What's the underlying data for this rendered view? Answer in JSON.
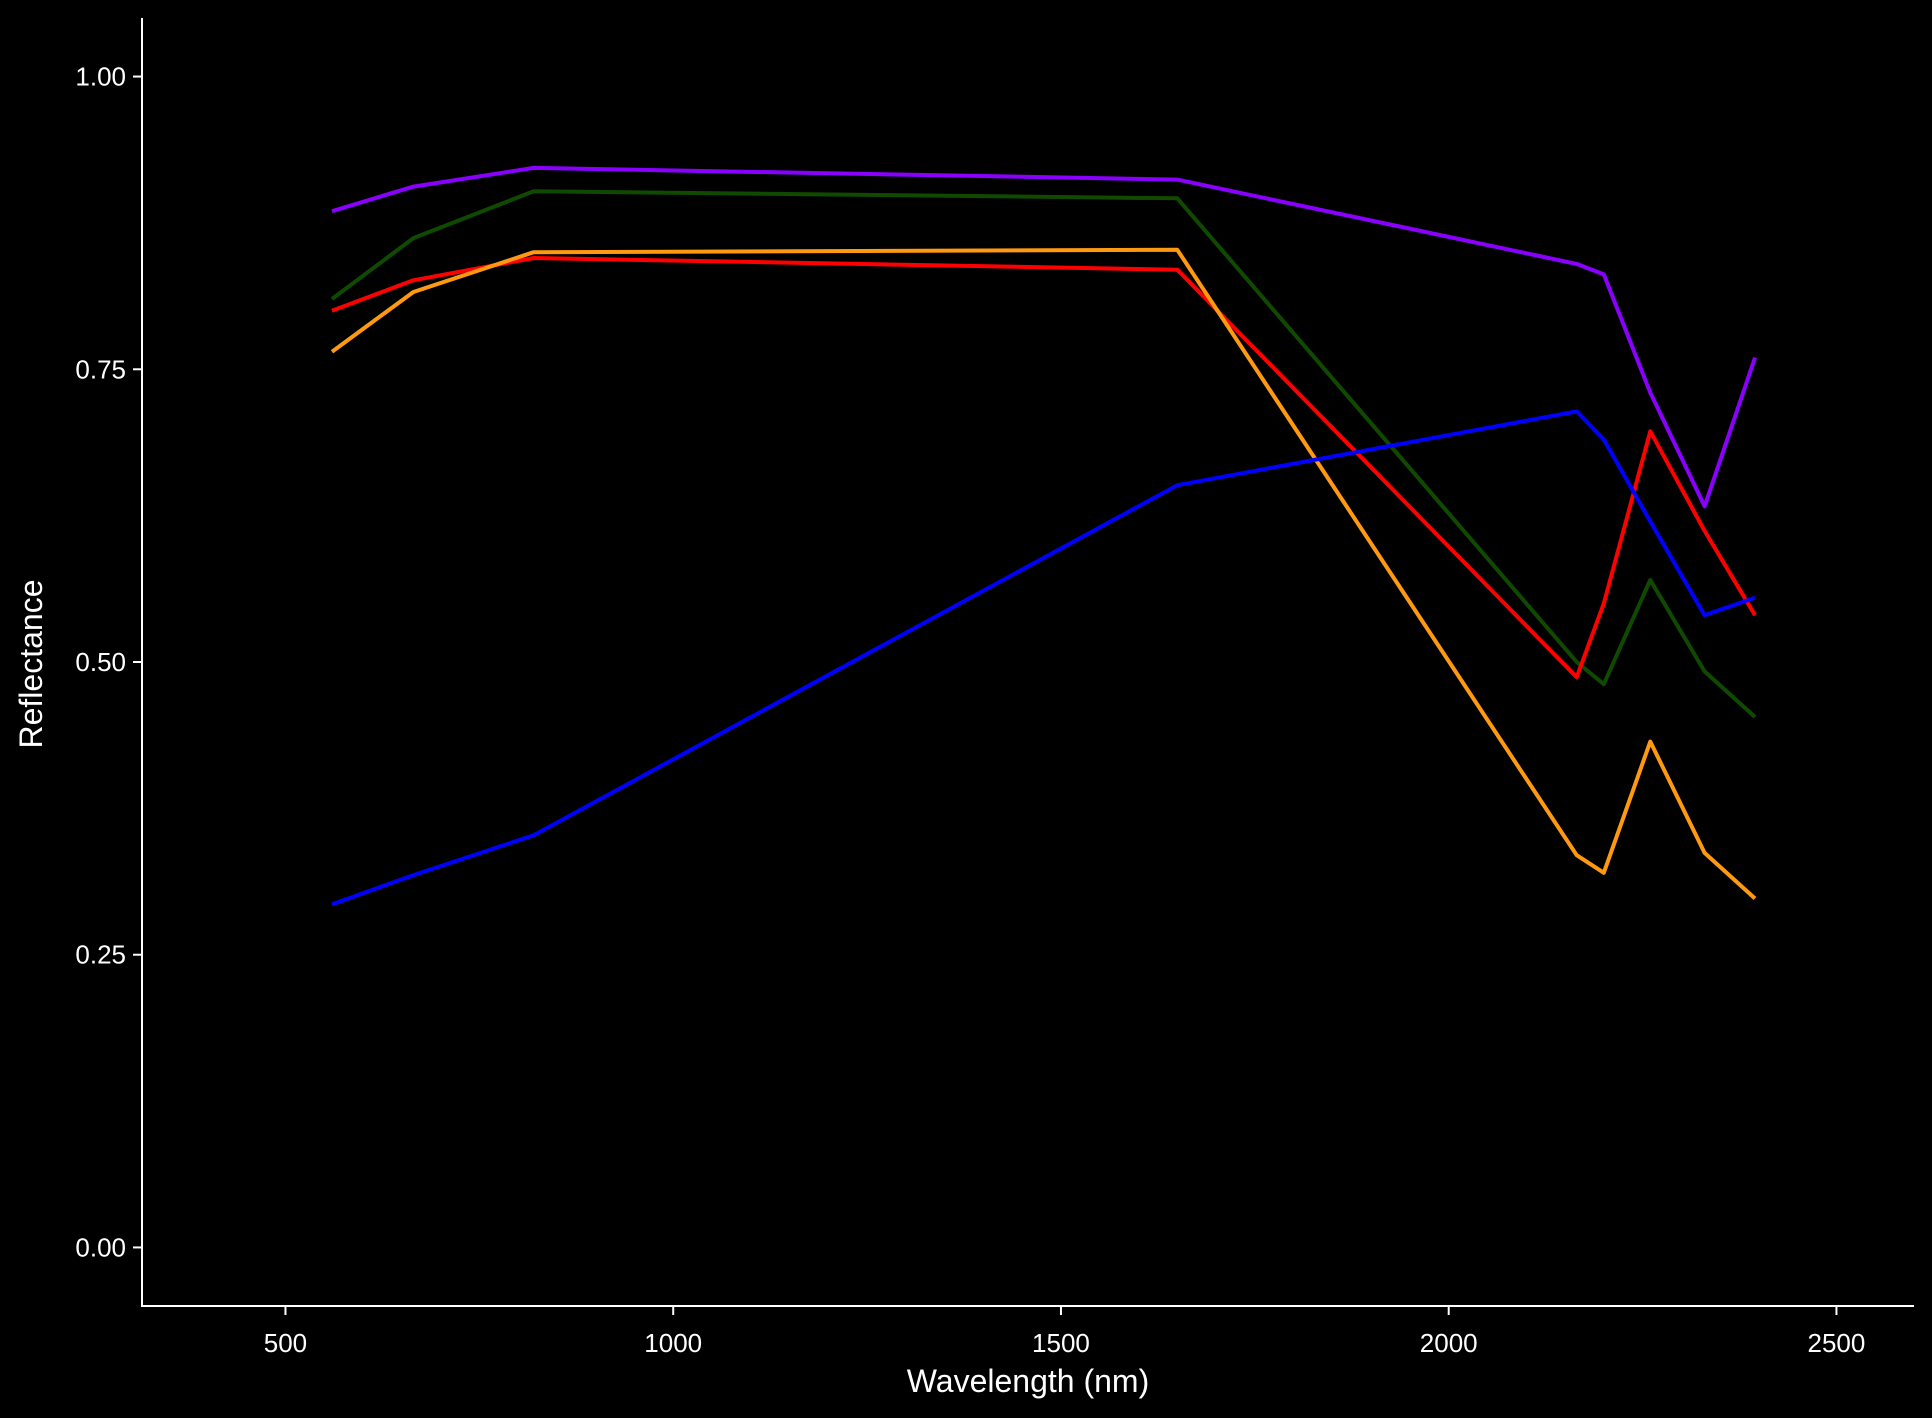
{
  "chart_data": {
    "type": "line",
    "xlabel": "Wavelength (nm)",
    "ylabel": "Reflectance",
    "xlim": [
      315,
      2600
    ],
    "ylim": [
      -0.05,
      1.05
    ],
    "xticks": [
      500,
      1000,
      1500,
      2000,
      2500
    ],
    "xtick_labels": [
      "500",
      "1000",
      "1500",
      "2000",
      "2500"
    ],
    "yticks": [
      0.0,
      0.25,
      0.5,
      0.75,
      1.0
    ],
    "ytick_labels": [
      "0.00",
      "0.25",
      "0.50",
      "0.75",
      "1.00"
    ],
    "grid": false,
    "legend": "none",
    "background": "#000000",
    "x": [
      560,
      665,
      820,
      1650,
      2165,
      2200,
      2260,
      2330,
      2395
    ],
    "series": [
      {
        "color": "#8a00ff",
        "values": [
          0.885,
          0.906,
          0.922,
          0.912,
          0.84,
          0.831,
          0.73,
          0.633,
          0.76
        ]
      },
      {
        "color": "#0f4a00",
        "values": [
          0.81,
          0.862,
          0.902,
          0.896,
          0.5,
          0.481,
          0.57,
          0.492,
          0.453
        ]
      },
      {
        "color": "#ff0000",
        "values": [
          0.8,
          0.826,
          0.845,
          0.835,
          0.487,
          0.55,
          0.697,
          0.612,
          0.54
        ]
      },
      {
        "color": "#ff9a10",
        "values": [
          0.765,
          0.816,
          0.85,
          0.852,
          0.335,
          0.32,
          0.432,
          0.337,
          0.298
        ]
      },
      {
        "color": "#0000ff",
        "values": [
          0.293,
          0.318,
          0.352,
          0.651,
          0.714,
          0.69,
          0.62,
          0.54,
          0.555
        ]
      }
    ]
  }
}
